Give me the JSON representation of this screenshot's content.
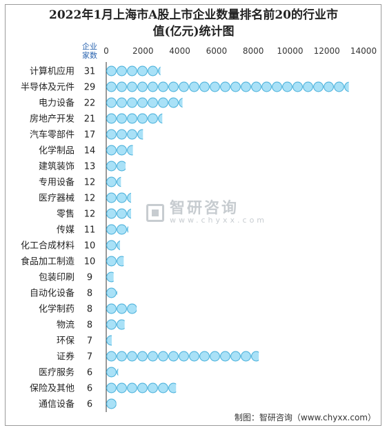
{
  "chart_data": {
    "type": "bar",
    "title_lines": [
      "2022年1月上海市A股上市企业数量排名前20的行业市",
      "值(亿元)统计图"
    ],
    "count_header": [
      "企业",
      "家数"
    ],
    "x_ticks": [
      0,
      2000,
      4000,
      6000,
      8000,
      10000,
      12000,
      14000
    ],
    "xlim": [
      0,
      14000
    ],
    "categories": [
      "计算机应用",
      "半导体及元件",
      "电力设备",
      "房地产开发",
      "汽车零部件",
      "化学制品",
      "建筑装饰",
      "专用设备",
      "医疗器械",
      "零售",
      "传媒",
      "化工合成材料",
      "食品加工制造",
      "包装印刷",
      "自动化设备",
      "化学制药",
      "物流",
      "环保",
      "证券",
      "医疗服务",
      "保险及其他",
      "通信设备"
    ],
    "counts": [
      31,
      29,
      22,
      21,
      17,
      14,
      13,
      12,
      12,
      12,
      11,
      10,
      10,
      9,
      8,
      8,
      8,
      7,
      7,
      6,
      6,
      6
    ],
    "values": [
      2950,
      13200,
      4150,
      3050,
      2000,
      1450,
      1050,
      800,
      1350,
      1350,
      1200,
      750,
      950,
      400,
      600,
      1650,
      1000,
      300,
      8300,
      650,
      3800,
      550
    ],
    "mark_color": "#a9e1f7",
    "mark_stroke": "#4fb3dc",
    "grid": false,
    "legend": "none"
  },
  "source": "制图：智研咨询（www.chyxx.com）",
  "watermark": {
    "name": "智研咨询",
    "url": "www.chyxx.com"
  }
}
